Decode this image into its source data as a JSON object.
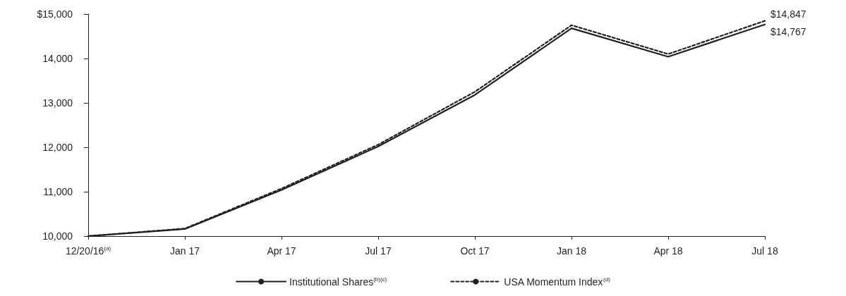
{
  "chart_data": {
    "type": "line",
    "categories": [
      "12/20/16$^{(a)}$",
      "Jan 17",
      "Apr 17",
      "Jul 17",
      "Oct 17",
      "Jan 18",
      "Apr 18",
      "Jul 18"
    ],
    "series": [
      {
        "name": "Institutional Shares$^{(b)(c)}$",
        "color": "#231f20",
        "line_style": "solid",
        "values": [
          10000,
          10160,
          11040,
          12020,
          13180,
          14680,
          14040,
          14767
        ],
        "value_labels": [
          null,
          null,
          null,
          null,
          null,
          null,
          null,
          "$14,767"
        ]
      },
      {
        "name": "USA Momentum Index$^{(d)}$",
        "color": "#231f20",
        "line_style": "dashed",
        "values": [
          10000,
          10170,
          11070,
          12060,
          13250,
          14750,
          14100,
          14847
        ],
        "value_labels": [
          null,
          null,
          null,
          null,
          null,
          null,
          null,
          "$14,847"
        ]
      }
    ],
    "ylim": [
      10000,
      15000
    ],
    "yticks": [
      {
        "value": 10000,
        "label": "10,000"
      },
      {
        "value": 11000,
        "label": "11,000"
      },
      {
        "value": 12000,
        "label": "12,000"
      },
      {
        "value": 13000,
        "label": "13,000"
      },
      {
        "value": 14000,
        "label": "14,000"
      },
      {
        "value": 15000,
        "label": "$15,000"
      }
    ],
    "grid": false,
    "legend": "bottom",
    "marker": "none"
  }
}
